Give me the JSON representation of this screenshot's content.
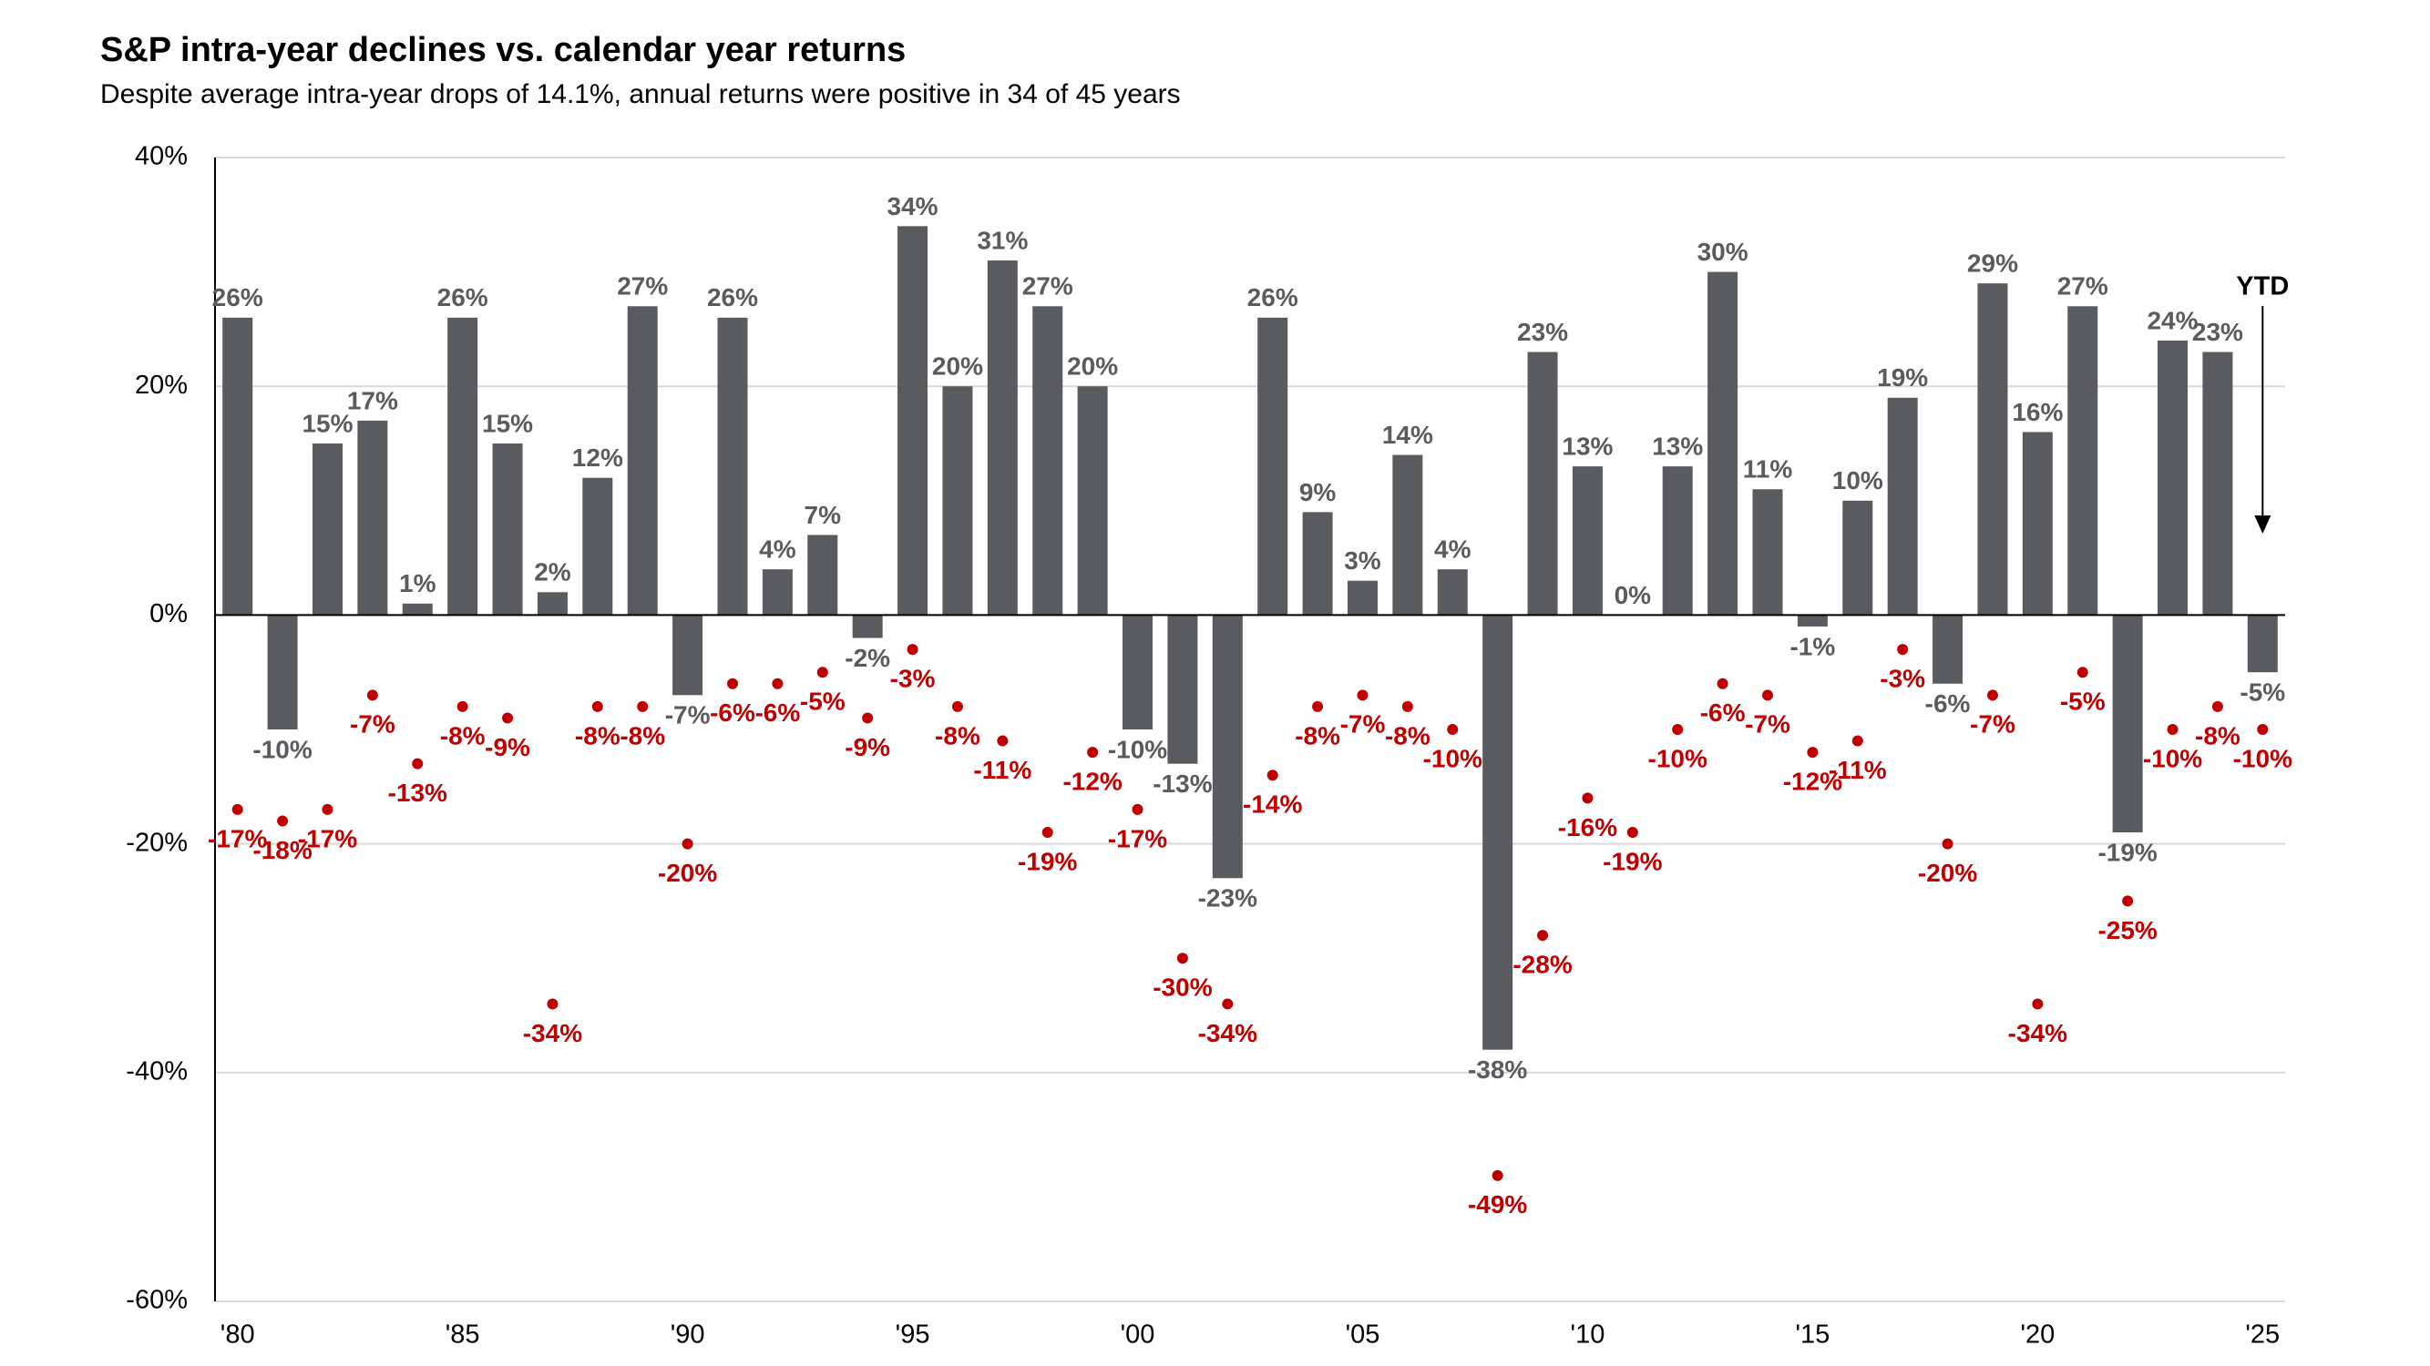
{
  "chart_data": {
    "type": "bar",
    "title": "S&P intra-year declines vs. calendar year returns",
    "subtitle": "Despite average intra-year drops of 14.1%, annual returns were positive in 34 of 45 years",
    "annotation": "YTD",
    "categories": [
      "'80",
      null,
      null,
      null,
      null,
      "'85",
      null,
      null,
      null,
      null,
      "'90",
      null,
      null,
      null,
      null,
      "'95",
      null,
      null,
      null,
      null,
      "'00",
      null,
      null,
      null,
      null,
      "'05",
      null,
      null,
      null,
      null,
      "'10",
      null,
      null,
      null,
      null,
      "'15",
      null,
      null,
      null,
      null,
      "'20",
      null,
      null,
      null,
      null,
      "'25"
    ],
    "series": [
      {
        "kind": "bar",
        "color": "#595b5e",
        "values": [
          26,
          -10,
          15,
          17,
          1,
          26,
          15,
          2,
          12,
          27,
          -7,
          26,
          4,
          7,
          -2,
          34,
          20,
          31,
          27,
          20,
          -10,
          -13,
          -23,
          26,
          9,
          3,
          14,
          4,
          -38,
          23,
          13,
          0,
          13,
          30,
          11,
          -1,
          10,
          19,
          -6,
          29,
          16,
          27,
          -19,
          24,
          23,
          -5
        ],
        "value_labels": [
          "26%",
          "-10%",
          "15%",
          "17%",
          "1%",
          "26%",
          "15%",
          "2%",
          "12%",
          "27%",
          "-7%",
          "26%",
          "4%",
          "7%",
          "-2%",
          "34%",
          "20%",
          "31%",
          "27%",
          "20%",
          "-10%",
          "-13%",
          "-23%",
          "26%",
          "9%",
          "3%",
          "14%",
          "4%",
          "-38%",
          "23%",
          "13%",
          "0%",
          "13%",
          "30%",
          "11%",
          "-1%",
          "10%",
          "19%",
          "-6%",
          "29%",
          "16%",
          "27%",
          "-19%",
          "24%",
          "23%",
          "-5%"
        ]
      },
      {
        "kind": "dot",
        "color": "#c00000",
        "values": [
          -17,
          -18,
          -17,
          -7,
          -13,
          -8,
          -9,
          -34,
          -8,
          -8,
          -20,
          -6,
          -6,
          -5,
          -9,
          -3,
          -8,
          -11,
          -19,
          -12,
          -17,
          -30,
          -34,
          -14,
          -8,
          -7,
          -8,
          -10,
          -49,
          -28,
          -16,
          -19,
          -10,
          -6,
          -7,
          -12,
          -11,
          -3,
          -20,
          -7,
          -34,
          -5,
          -25,
          -10,
          -8,
          -10
        ],
        "value_labels": [
          "-17%",
          "-18%",
          "-17%",
          "-7%",
          "-13%",
          "-8%",
          "-9%",
          "-34%",
          "-8%",
          "-8%",
          "-20%",
          "-6%",
          "-6%",
          "-5%",
          "-9%",
          "-3%",
          "-8%",
          "-11%",
          "-19%",
          "-12%",
          "-17%",
          "-30%",
          "-34%",
          "-14%",
          "-8%",
          "-7%",
          "-8%",
          "-10%",
          "-49%",
          "-28%",
          "-16%",
          "-19%",
          "-10%",
          "-6%",
          "-7%",
          "-12%",
          "-11%",
          "-3%",
          "-20%",
          "-7%",
          "-34%",
          "-5%",
          "-25%",
          "-10%",
          "-8%",
          "-10%"
        ]
      }
    ],
    "ylim": [
      -60,
      40
    ],
    "yticks": [
      {
        "value": -60,
        "label": "-60%"
      },
      {
        "value": -40,
        "label": "-40%"
      },
      {
        "value": -20,
        "label": "-20%"
      },
      {
        "value": 0,
        "label": "0%"
      },
      {
        "value": 20,
        "label": "20%"
      },
      {
        "value": 40,
        "label": "40%"
      }
    ],
    "grid": true
  }
}
